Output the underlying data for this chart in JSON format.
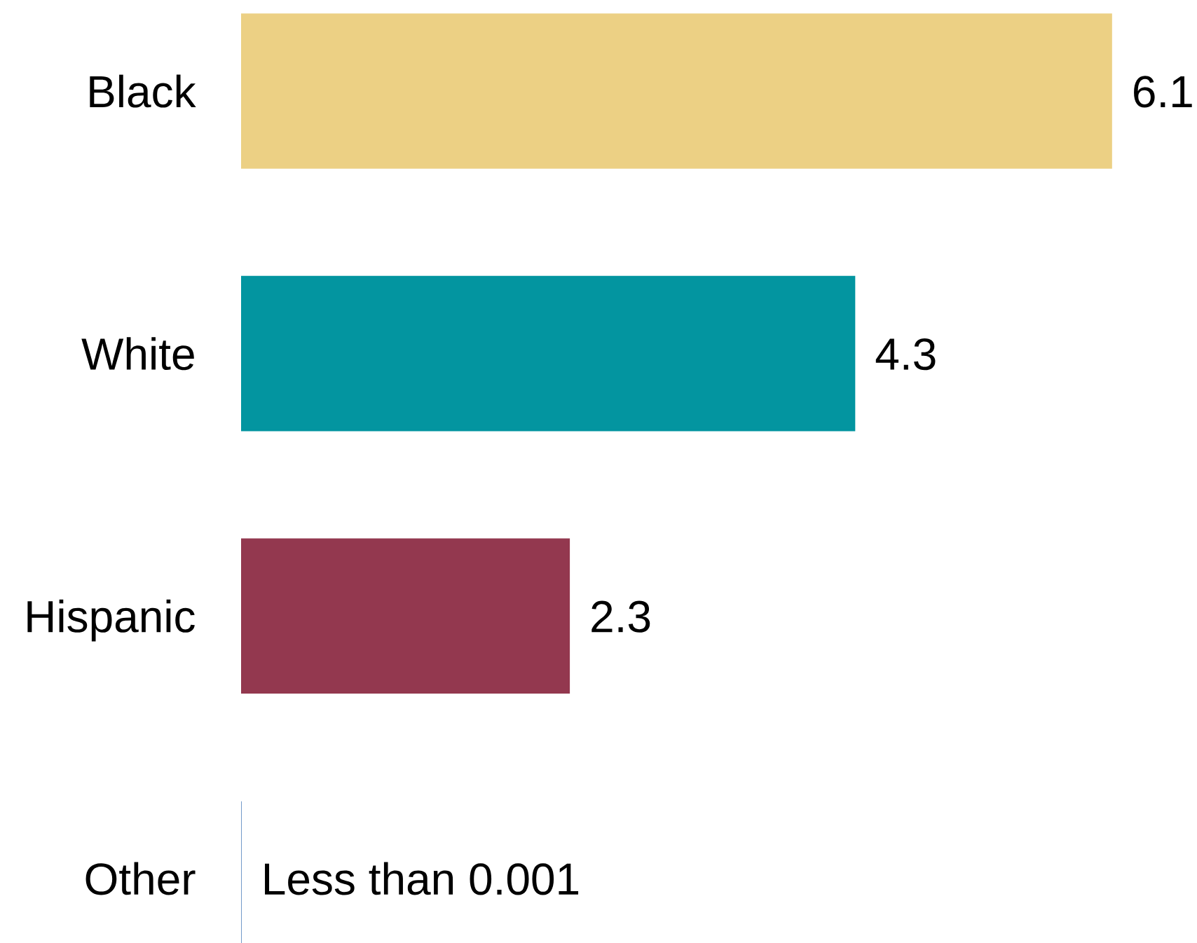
{
  "chart_data": {
    "type": "bar",
    "orientation": "horizontal",
    "categories": [
      "Black",
      "White",
      "Hispanic",
      "Other"
    ],
    "values": [
      6.1,
      4.3,
      2.3,
      0
    ],
    "colors": [
      "#ecd084",
      "#0395a0",
      "#93384f",
      "#4f81bd"
    ],
    "value_labels": [
      "6.1",
      "4.3",
      "2.3",
      "Less than 0.001"
    ]
  }
}
